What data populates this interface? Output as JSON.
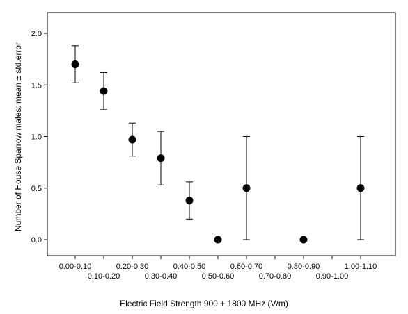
{
  "chart_data": {
    "type": "scatter",
    "title": "",
    "xlabel": "Electric Field Strength 900 + 1800 MHz (V/m)",
    "ylabel": "Number of House Sparrow males: mean ± std.error",
    "categories": [
      "0.00-0.10",
      "0.10-0.20",
      "0.20-0.30",
      "0.30-0.40",
      "0.40-0.50",
      "0.50-0.60",
      "0.60-0.70",
      "0.70-0.80",
      "0.80-0.90",
      "0.90-1.00",
      "1.00-1.10"
    ],
    "yticks": [
      "0.0",
      "0.5",
      "1.0",
      "1.5",
      "2.0"
    ],
    "ylim": [
      -0.2,
      2.2
    ],
    "points": [
      {
        "category": "0.00-0.10",
        "mean": 1.7,
        "se": 0.18
      },
      {
        "category": "0.10-0.20",
        "mean": 1.44,
        "se": 0.18
      },
      {
        "category": "0.20-0.30",
        "mean": 0.97,
        "se": 0.16
      },
      {
        "category": "0.30-0.40",
        "mean": 0.79,
        "se": 0.26
      },
      {
        "category": "0.40-0.50",
        "mean": 0.38,
        "se": 0.18
      },
      {
        "category": "0.50-0.60",
        "mean": 0.0,
        "se": 0.0
      },
      {
        "category": "0.60-0.70",
        "mean": 0.5,
        "se": 0.5
      },
      {
        "category": "0.80-0.90",
        "mean": 0.0,
        "se": 0.0
      },
      {
        "category": "1.00-1.10",
        "mean": 0.5,
        "se": 0.5
      }
    ],
    "error_bars": "mean ± std.error",
    "grid": false,
    "legend": "none",
    "colors": {
      "marker": "#000000",
      "error_bar": "#000000",
      "axis": "#000000"
    }
  }
}
